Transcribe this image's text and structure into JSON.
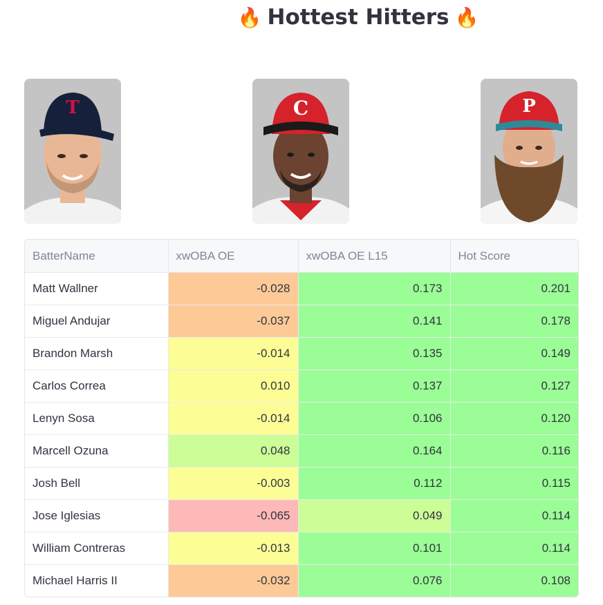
{
  "header": {
    "title": "Hottest Hitters",
    "fire_emoji": "🔥"
  },
  "photos": [
    {
      "team": "Minnesota Twins",
      "cap_color": "#15213a",
      "logo_color": "#d31145",
      "skin": "#e8b896"
    },
    {
      "team": "Cincinnati Reds",
      "cap_color": "#d5222b",
      "logo_color": "#ffffff",
      "skin": "#6b4330"
    },
    {
      "team": "Philadelphia Phillies",
      "cap_color": "#d5222b",
      "logo_color": "#ffffff",
      "skin": "#e0ae8c"
    }
  ],
  "table": {
    "columns": [
      "BatterName",
      "xwOBA OE",
      "xwOBA OE L15",
      "Hot Score"
    ],
    "rows": [
      {
        "name": "Matt Wallner",
        "xwoba_oe": "-0.028",
        "xwoba_oe_l15": "0.173",
        "hot_score": "0.201",
        "colors": [
          "#fdca97",
          "#9bfd96",
          "#9bfd96"
        ]
      },
      {
        "name": "Miguel Andujar",
        "xwoba_oe": "-0.037",
        "xwoba_oe_l15": "0.141",
        "hot_score": "0.178",
        "colors": [
          "#fdca97",
          "#9bfd96",
          "#9bfd96"
        ]
      },
      {
        "name": "Brandon Marsh",
        "xwoba_oe": "-0.014",
        "xwoba_oe_l15": "0.135",
        "hot_score": "0.149",
        "colors": [
          "#fdfd96",
          "#9bfd96",
          "#9bfd96"
        ]
      },
      {
        "name": "Carlos Correa",
        "xwoba_oe": "0.010",
        "xwoba_oe_l15": "0.137",
        "hot_score": "0.127",
        "colors": [
          "#fdfd96",
          "#9bfd96",
          "#9bfd96"
        ]
      },
      {
        "name": "Lenyn Sosa",
        "xwoba_oe": "-0.014",
        "xwoba_oe_l15": "0.106",
        "hot_score": "0.120",
        "colors": [
          "#fdfd96",
          "#9bfd96",
          "#9bfd96"
        ]
      },
      {
        "name": "Marcell Ozuna",
        "xwoba_oe": "0.048",
        "xwoba_oe_l15": "0.164",
        "hot_score": "0.116",
        "colors": [
          "#ccfd96",
          "#9bfd96",
          "#9bfd96"
        ]
      },
      {
        "name": "Josh Bell",
        "xwoba_oe": "-0.003",
        "xwoba_oe_l15": "0.112",
        "hot_score": "0.115",
        "colors": [
          "#fdfd96",
          "#9bfd96",
          "#9bfd96"
        ]
      },
      {
        "name": "Jose Iglesias",
        "xwoba_oe": "-0.065",
        "xwoba_oe_l15": "0.049",
        "hot_score": "0.114",
        "colors": [
          "#fdb8b8",
          "#ccfd96",
          "#9bfd96"
        ]
      },
      {
        "name": "William Contreras",
        "xwoba_oe": "-0.013",
        "xwoba_oe_l15": "0.101",
        "hot_score": "0.114",
        "colors": [
          "#fdfd96",
          "#9bfd96",
          "#9bfd96"
        ]
      },
      {
        "name": "Michael Harris II",
        "xwoba_oe": "-0.032",
        "xwoba_oe_l15": "0.076",
        "hot_score": "0.108",
        "colors": [
          "#fdca97",
          "#9bfd96",
          "#9bfd96"
        ]
      }
    ]
  }
}
